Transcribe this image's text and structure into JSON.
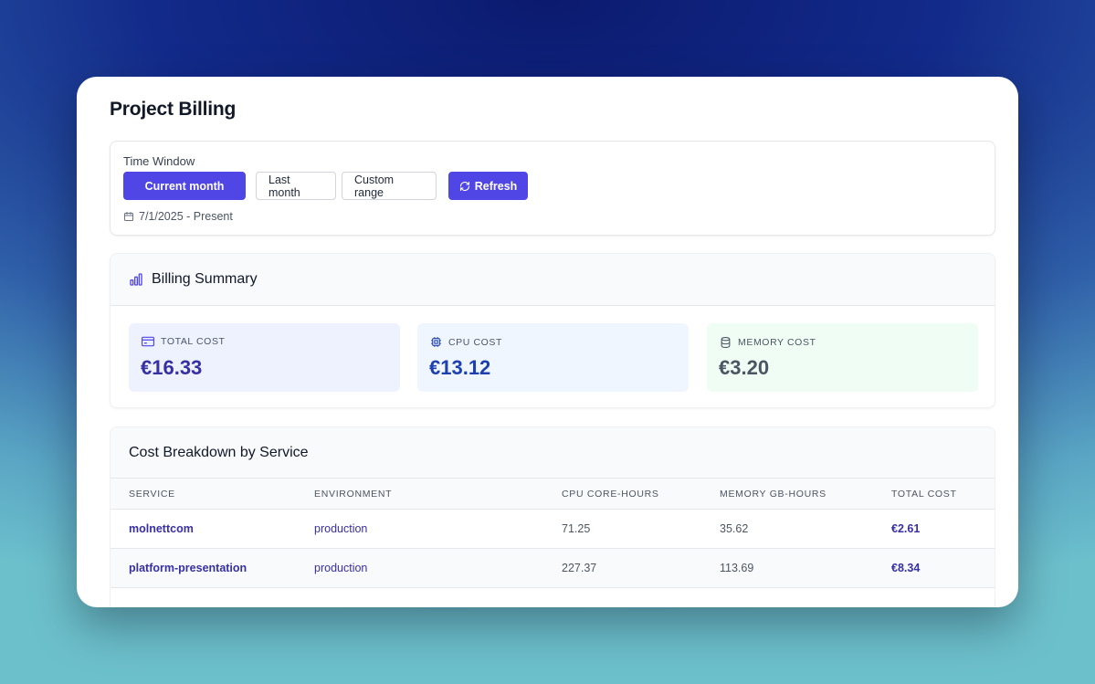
{
  "page": {
    "title": "Project Billing"
  },
  "time_window": {
    "label": "Time Window",
    "buttons": [
      "Current month",
      "Last month",
      "Custom range"
    ],
    "selected": "Current month",
    "refresh_label": "Refresh",
    "range": "7/1/2025 - Present"
  },
  "summary": {
    "title": "Billing Summary",
    "stats": [
      {
        "label": "TOTAL COST",
        "value": "€16.33",
        "icon": "credit-card-icon",
        "bg": "#eef2ff",
        "color": "#3730a3"
      },
      {
        "label": "CPU COST",
        "value": "€13.12",
        "icon": "cpu-icon",
        "bg": "#eff6ff",
        "color": "#1e40af"
      },
      {
        "label": "MEMORY COST",
        "value": "€3.20",
        "icon": "database-icon",
        "bg": "#f0fdf4",
        "color": "#4b5563"
      }
    ]
  },
  "breakdown": {
    "title": "Cost Breakdown by Service",
    "columns": [
      "SERVICE",
      "ENVIRONMENT",
      "CPU CORE-HOURS",
      "MEMORY GB-HOURS",
      "TOTAL COST"
    ],
    "rows": [
      {
        "service": "molnettcom",
        "environment": "production",
        "cpu": "71.25",
        "memory": "35.62",
        "total": "€2.61"
      },
      {
        "service": "platform-presentation",
        "environment": "production",
        "cpu": "227.37",
        "memory": "113.69",
        "total": "€8.34"
      }
    ]
  },
  "colors": {
    "accent": "#4f46e5",
    "link": "#3730a3"
  }
}
